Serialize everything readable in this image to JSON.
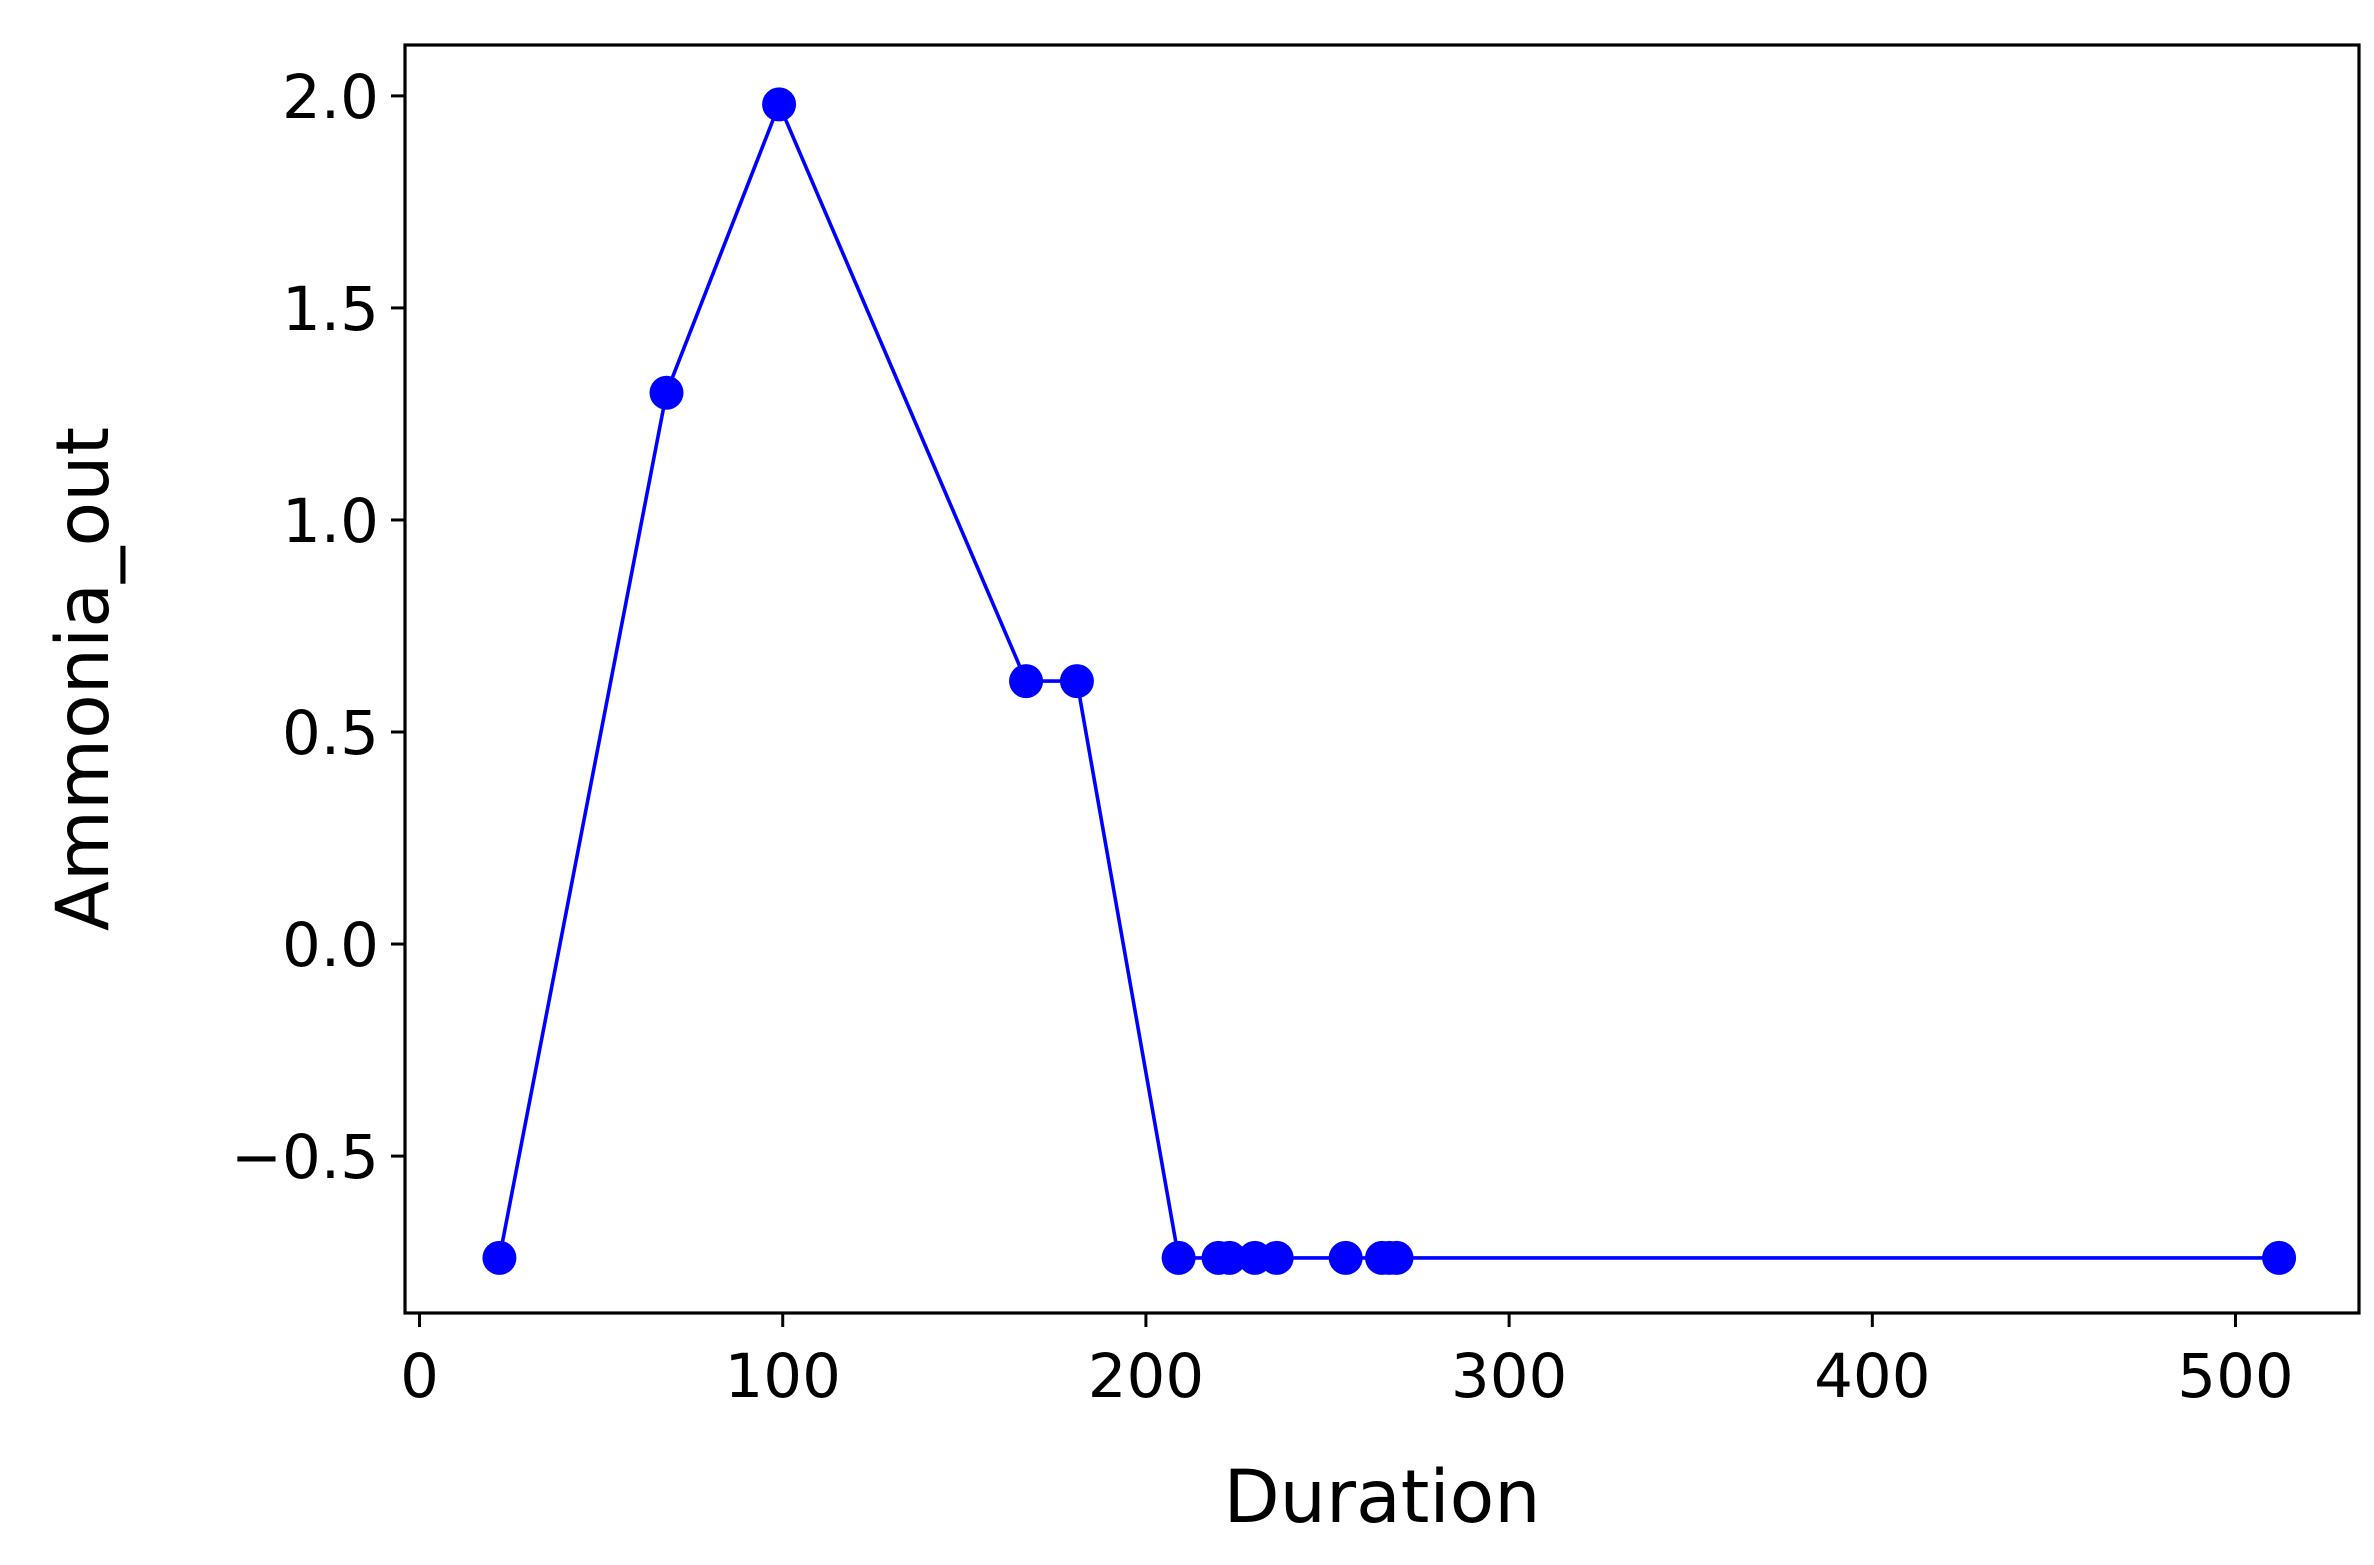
{
  "chart_data": {
    "type": "line",
    "title": "",
    "xlabel": "Duration",
    "ylabel": "Ammonia_out",
    "xlim": [
      -4,
      534
    ],
    "ylim": [
      -0.87,
      2.12
    ],
    "x_ticks": [
      0,
      100,
      200,
      300,
      400,
      500
    ],
    "y_ticks": [
      -0.5,
      0.0,
      0.5,
      1.0,
      1.5,
      2.0
    ],
    "x_tick_labels": [
      "0",
      "100",
      "200",
      "300",
      "400",
      "500"
    ],
    "y_tick_labels": [
      "−0.5",
      "0.0",
      "0.5",
      "1.0",
      "1.5",
      "2.0"
    ],
    "grid": false,
    "legend": "none",
    "series": [
      {
        "color": "#0000ff",
        "marker": "circle",
        "x": [
          22,
          68,
          99,
          167,
          181,
          209,
          220,
          223,
          230,
          236,
          255,
          265,
          267,
          269,
          512
        ],
        "y": [
          -0.74,
          1.3,
          1.98,
          0.62,
          0.62,
          -0.74,
          -0.74,
          -0.74,
          -0.74,
          -0.74,
          -0.74,
          -0.74,
          -0.74,
          -0.74,
          -0.74
        ]
      }
    ]
  }
}
